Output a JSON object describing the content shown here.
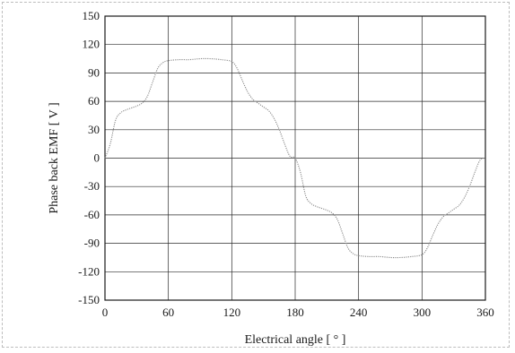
{
  "chart_data": {
    "type": "line",
    "xlabel": "Electrical angle [ ° ]",
    "ylabel": "Phase back EMF [ V ]",
    "xlim": [
      0,
      360
    ],
    "ylim": [
      -150,
      150
    ],
    "xticks": [
      0,
      60,
      120,
      180,
      240,
      300,
      360
    ],
    "yticks": [
      150,
      120,
      90,
      60,
      30,
      0,
      -30,
      -60,
      -90,
      -120,
      -150
    ],
    "grid": true,
    "series": [
      {
        "x": [
          0,
          5,
          10,
          15,
          20,
          25,
          30,
          35,
          40,
          45,
          50,
          55,
          60,
          70,
          80,
          90,
          100,
          110,
          120,
          125,
          130,
          135,
          140,
          145,
          150,
          155,
          160,
          165,
          170,
          175,
          180,
          185,
          190,
          195,
          200,
          205,
          210,
          215,
          220,
          225,
          230,
          235,
          240,
          250,
          260,
          270,
          280,
          290,
          300,
          305,
          310,
          315,
          320,
          325,
          330,
          335,
          340,
          345,
          350,
          355,
          360
        ],
        "y": [
          0,
          15,
          40,
          48,
          51,
          53,
          55,
          58,
          65,
          80,
          95,
          101,
          103,
          104,
          104,
          105,
          105,
          104,
          102,
          95,
          82,
          70,
          62,
          58,
          54,
          50,
          42,
          30,
          15,
          2,
          0,
          -15,
          -40,
          -48,
          -51,
          -53,
          -55,
          -58,
          -65,
          -80,
          -95,
          -101,
          -103,
          -104,
          -104,
          -105,
          -105,
          -104,
          -102,
          -95,
          -82,
          -70,
          -62,
          -58,
          -54,
          -50,
          -42,
          -30,
          -15,
          -2,
          0
        ]
      }
    ]
  }
}
